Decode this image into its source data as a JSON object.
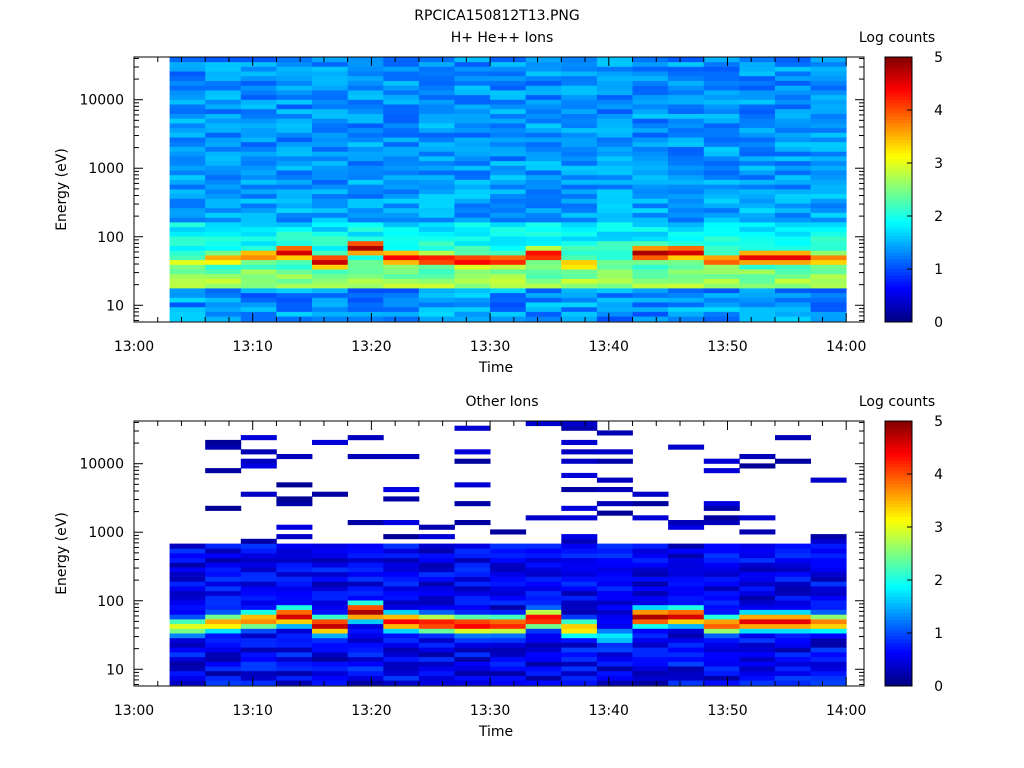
{
  "figure": {
    "title": "RPCICA150812T13.PNG"
  },
  "chart_data": [
    {
      "type": "heatmap",
      "title": "H+ He++ Ions",
      "xlabel": "Time",
      "ylabel": "Energy (eV)",
      "x_tick_labels": [
        "13:00",
        "13:10",
        "13:20",
        "13:30",
        "13:40",
        "13:50",
        "14:00"
      ],
      "xlim_minutes": [
        0,
        61.5
      ],
      "y_scale": "log",
      "y_tick_labels": [
        "10",
        "100",
        "1000",
        "10000"
      ],
      "ylim": [
        5.7,
        42000
      ],
      "colorbar": {
        "label": "Log counts",
        "ticks": [
          "0",
          "1",
          "2",
          "3",
          "4",
          "5"
        ],
        "range": [
          0,
          5
        ]
      },
      "time_bin_starts_minutes": [
        3,
        6,
        9,
        12,
        15,
        18,
        21,
        24,
        27,
        30,
        33,
        36,
        39,
        42,
        45,
        48,
        51,
        54,
        57
      ],
      "peak_energy_eV": [
        42,
        48,
        53,
        60,
        44,
        70,
        50,
        47,
        45,
        45,
        55,
        40,
        30,
        58,
        60,
        45,
        50,
        50,
        48
      ],
      "peak_log_counts": [
        3.0,
        3.6,
        3.8,
        4.6,
        4.7,
        4.8,
        4.4,
        4.4,
        4.5,
        4.3,
        4.5,
        3.5,
        1.8,
        4.8,
        4.6,
        4.0,
        4.5,
        4.5,
        3.8
      ]
    },
    {
      "type": "heatmap",
      "title": "Other Ions",
      "xlabel": "Time",
      "ylabel": "Energy (eV)",
      "x_tick_labels": [
        "13:00",
        "13:10",
        "13:20",
        "13:30",
        "13:40",
        "13:50",
        "14:00"
      ],
      "xlim_minutes": [
        0,
        61.5
      ],
      "y_scale": "log",
      "y_tick_labels": [
        "10",
        "100",
        "1000",
        "10000"
      ],
      "ylim": [
        5.7,
        42000
      ],
      "colorbar": {
        "label": "Log counts",
        "ticks": [
          "0",
          "1",
          "2",
          "3",
          "4",
          "5"
        ],
        "range": [
          0,
          5
        ]
      },
      "time_bin_starts_minutes": [
        3,
        6,
        9,
        12,
        15,
        18,
        21,
        24,
        27,
        30,
        33,
        36,
        39,
        42,
        45,
        48,
        51,
        54,
        57
      ],
      "peak_energy_eV": [
        42,
        48,
        53,
        60,
        44,
        70,
        50,
        47,
        45,
        45,
        55,
        40,
        30,
        58,
        60,
        45,
        50,
        50,
        48
      ],
      "peak_log_counts": [
        3.0,
        3.6,
        3.8,
        4.6,
        4.7,
        4.8,
        4.4,
        4.4,
        4.5,
        4.3,
        4.5,
        3.5,
        1.8,
        4.8,
        4.6,
        4.0,
        4.5,
        4.5,
        3.8
      ]
    }
  ]
}
